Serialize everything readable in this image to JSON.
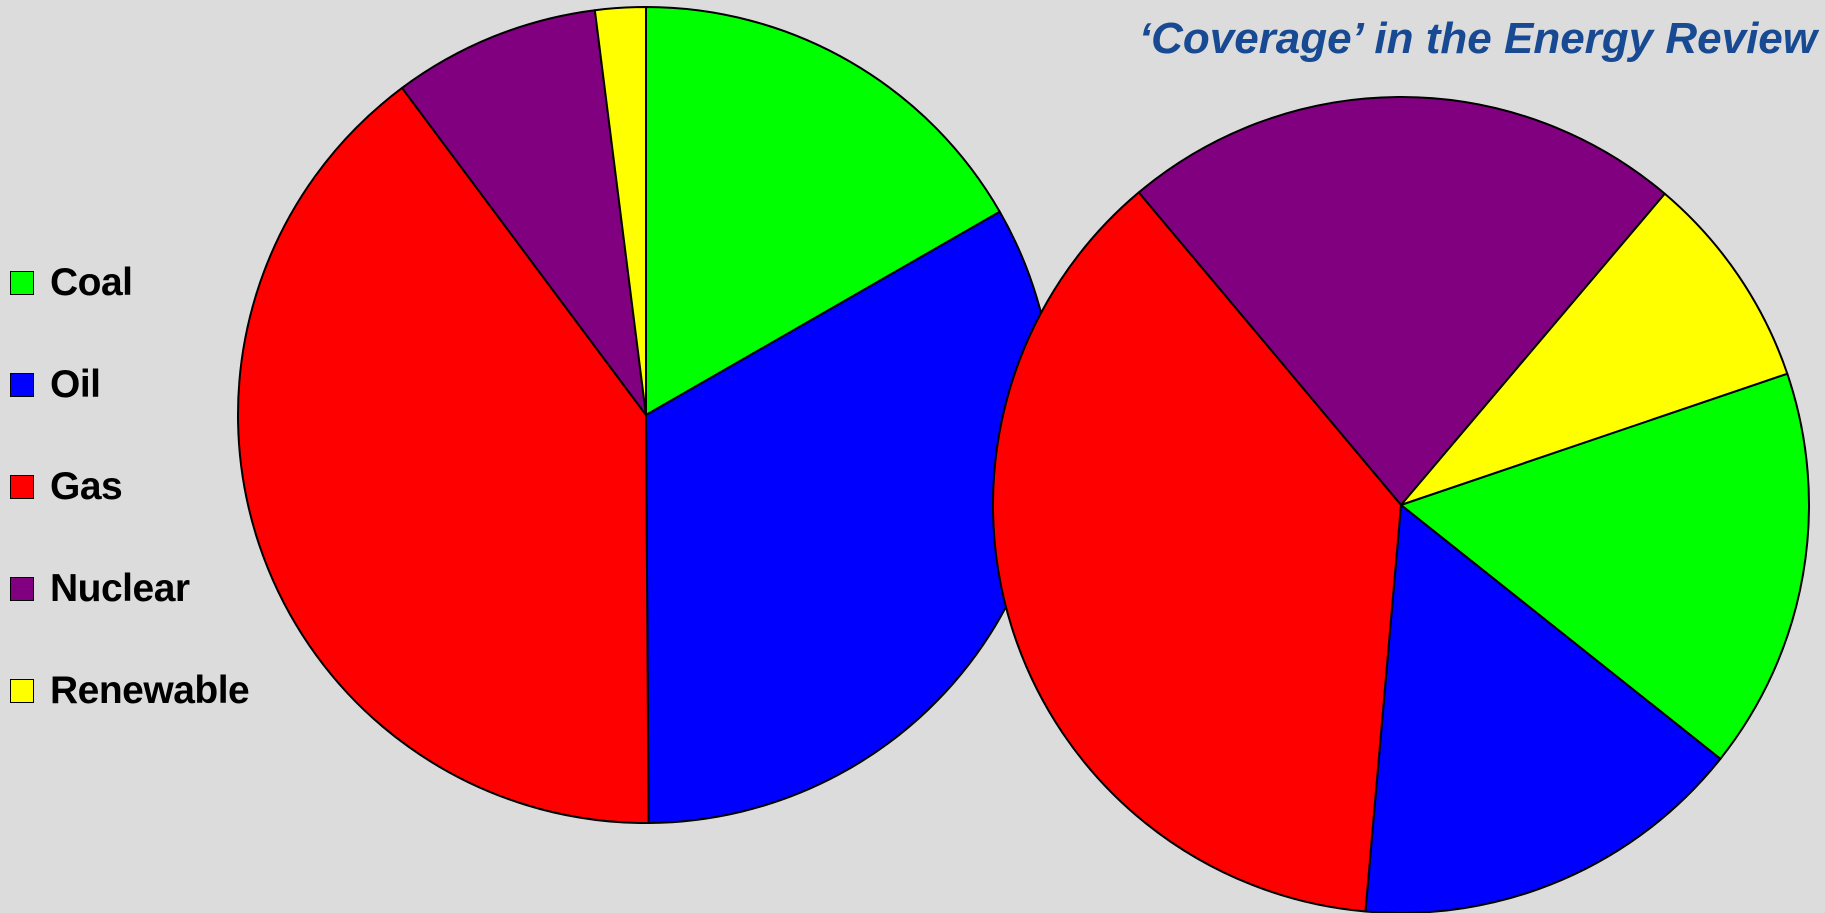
{
  "title": "‘Coverage’ in the Energy Review",
  "legend": [
    {
      "label": "Coal",
      "color": "#00ff00"
    },
    {
      "label": "Oil",
      "color": "#0000ff"
    },
    {
      "label": "Gas",
      "color": "#ff0000"
    },
    {
      "label": "Nuclear",
      "color": "#800080"
    },
    {
      "label": "Renewable",
      "color": "#ffff00"
    }
  ],
  "chart_data": [
    {
      "type": "pie",
      "categories": [
        "Coal",
        "Oil",
        "Gas",
        "Nuclear",
        "Renewable"
      ],
      "values": [
        16.7,
        33.2,
        39.9,
        8.2,
        2.0
      ],
      "start_angle_deg": 0,
      "direction": "clockwise"
    },
    {
      "type": "pie",
      "categories": [
        "Nuclear",
        "Renewable",
        "Coal",
        "Oil",
        "Gas"
      ],
      "values": [
        22.3,
        8.6,
        15.9,
        15.7,
        37.5
      ],
      "start_angle_deg": -40,
      "direction": "clockwise"
    }
  ]
}
